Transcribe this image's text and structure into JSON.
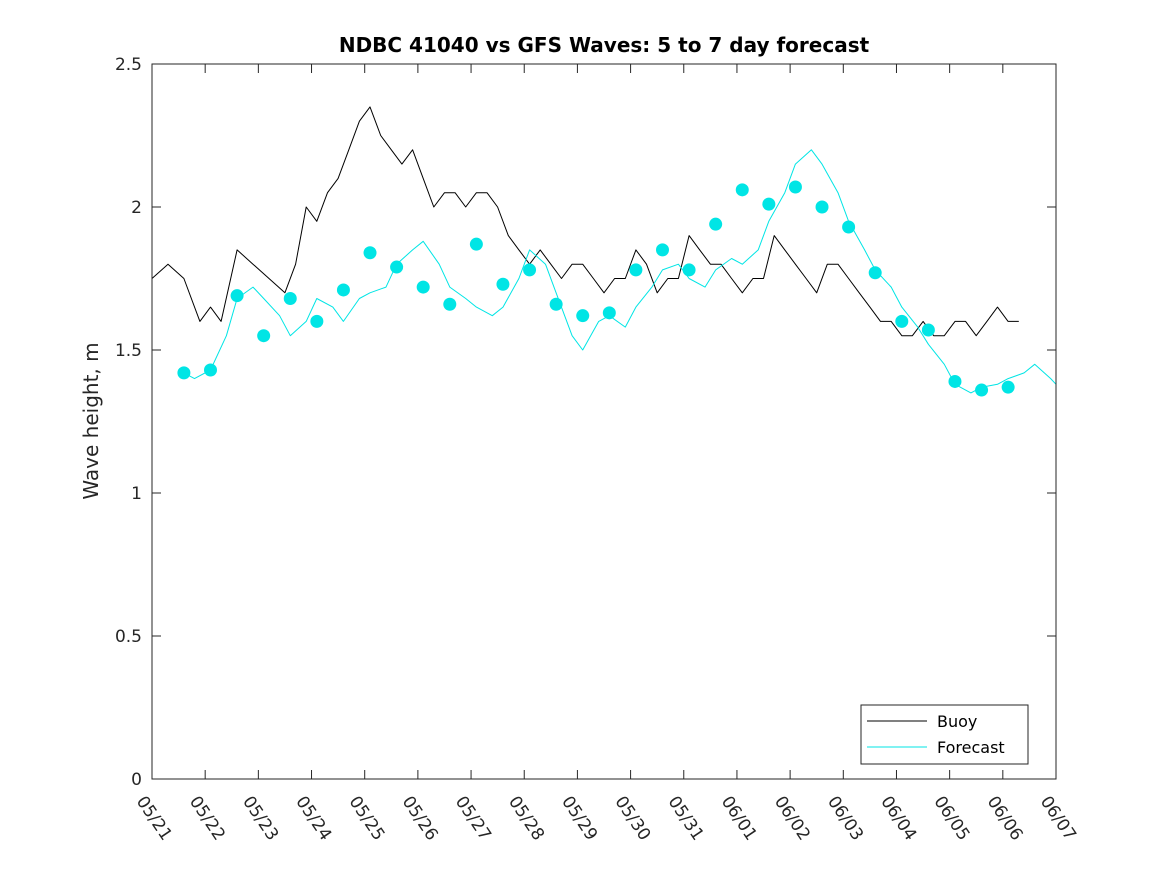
{
  "chart_data": {
    "type": "line",
    "title": "NDBC 41040 vs GFS Waves: 5 to 7 day forecast",
    "xlabel": "",
    "ylabel": "Wave height, m",
    "ylim": [
      0,
      2.5
    ],
    "xlim": [
      "05/21",
      "06/07"
    ],
    "x_tick_labels": [
      "05/21",
      "05/22",
      "05/23",
      "05/24",
      "05/25",
      "05/26",
      "05/27",
      "05/28",
      "05/29",
      "05/30",
      "05/31",
      "06/01",
      "06/02",
      "06/03",
      "06/04",
      "06/05",
      "06/06",
      "06/07"
    ],
    "y_tick_labels": [
      "0",
      "0.5",
      "1",
      "1.5",
      "2",
      "2.5"
    ],
    "y_ticks": [
      0,
      0.5,
      1,
      1.5,
      2,
      2.5
    ],
    "legend": {
      "position": "bottom-right",
      "entries": [
        {
          "label": "Buoy",
          "color": "#000000"
        },
        {
          "label": "Forecast",
          "color": "#00e5e5"
        }
      ]
    },
    "colors": {
      "buoy": "#000000",
      "forecast": "#00e5e5",
      "marker": "#00e5e5"
    },
    "series": [
      {
        "name": "Buoy",
        "color": "#000000",
        "note_x_units": "days since 05/21",
        "x": [
          0,
          0.3,
          0.6,
          0.9,
          1.1,
          1.3,
          1.6,
          1.9,
          2.2,
          2.5,
          2.7,
          2.9,
          3.1,
          3.3,
          3.5,
          3.7,
          3.9,
          4.1,
          4.3,
          4.5,
          4.7,
          4.9,
          5.1,
          5.3,
          5.5,
          5.7,
          5.9,
          6.1,
          6.3,
          6.5,
          6.7,
          6.9,
          7.1,
          7.3,
          7.5,
          7.7,
          7.9,
          8.1,
          8.3,
          8.5,
          8.7,
          8.9,
          9.1,
          9.3,
          9.5,
          9.7,
          9.9,
          10.1,
          10.3,
          10.5,
          10.7,
          10.9,
          11.1,
          11.3,
          11.5,
          11.7,
          11.9,
          12.1,
          12.3,
          12.5,
          12.7,
          12.9,
          13.1,
          13.3,
          13.5,
          13.7,
          13.9,
          14.1,
          14.3,
          14.5,
          14.7,
          14.9,
          15.1,
          15.3,
          15.5,
          15.7,
          15.9,
          16.1,
          16.3
        ],
        "values": [
          1.75,
          1.8,
          1.75,
          1.6,
          1.65,
          1.6,
          1.85,
          1.8,
          1.75,
          1.7,
          1.8,
          2.0,
          1.95,
          2.05,
          2.1,
          2.2,
          2.3,
          2.35,
          2.25,
          2.2,
          2.15,
          2.2,
          2.1,
          2.0,
          2.05,
          2.05,
          2.0,
          2.05,
          2.05,
          2.0,
          1.9,
          1.85,
          1.8,
          1.85,
          1.8,
          1.75,
          1.8,
          1.8,
          1.75,
          1.7,
          1.75,
          1.75,
          1.85,
          1.8,
          1.7,
          1.75,
          1.75,
          1.9,
          1.85,
          1.8,
          1.8,
          1.75,
          1.7,
          1.75,
          1.75,
          1.9,
          1.85,
          1.8,
          1.75,
          1.7,
          1.8,
          1.8,
          1.75,
          1.7,
          1.65,
          1.6,
          1.6,
          1.55,
          1.55,
          1.6,
          1.55,
          1.55,
          1.6,
          1.6,
          1.55,
          1.6,
          1.65,
          1.6,
          1.6
        ]
      },
      {
        "name": "Forecast",
        "color": "#00e5e5",
        "note_x_units": "days since 05/21",
        "x": [
          0.6,
          0.8,
          1.1,
          1.4,
          1.6,
          1.9,
          2.1,
          2.4,
          2.6,
          2.9,
          3.1,
          3.4,
          3.6,
          3.9,
          4.1,
          4.4,
          4.6,
          4.9,
          5.1,
          5.4,
          5.6,
          5.9,
          6.1,
          6.4,
          6.6,
          6.9,
          7.1,
          7.4,
          7.6,
          7.9,
          8.1,
          8.4,
          8.6,
          8.9,
          9.1,
          9.4,
          9.6,
          9.9,
          10.1,
          10.4,
          10.6,
          10.9,
          11.1,
          11.4,
          11.6,
          11.9,
          12.1,
          12.4,
          12.6,
          12.9,
          13.1,
          13.4,
          13.6,
          13.9,
          14.1,
          14.4,
          14.6,
          14.9,
          15.1,
          15.4,
          15.6,
          15.9,
          16.1,
          16.4,
          16.6,
          16.9,
          17.0
        ],
        "values": [
          1.42,
          1.4,
          1.43,
          1.55,
          1.68,
          1.72,
          1.68,
          1.62,
          1.55,
          1.6,
          1.68,
          1.65,
          1.6,
          1.68,
          1.7,
          1.72,
          1.8,
          1.85,
          1.88,
          1.8,
          1.72,
          1.68,
          1.65,
          1.62,
          1.65,
          1.75,
          1.85,
          1.8,
          1.7,
          1.55,
          1.5,
          1.6,
          1.62,
          1.58,
          1.65,
          1.72,
          1.78,
          1.8,
          1.75,
          1.72,
          1.78,
          1.82,
          1.8,
          1.85,
          1.95,
          2.05,
          2.15,
          2.2,
          2.15,
          2.05,
          1.95,
          1.85,
          1.78,
          1.72,
          1.65,
          1.58,
          1.52,
          1.45,
          1.38,
          1.35,
          1.37,
          1.38,
          1.4,
          1.42,
          1.45,
          1.4,
          1.38
        ]
      },
      {
        "name": "Forecast markers",
        "color": "#00e5e5",
        "note_x_units": "days since 05/21",
        "x": [
          0.6,
          1.1,
          1.6,
          2.1,
          2.6,
          3.1,
          3.6,
          4.1,
          4.6,
          5.1,
          5.6,
          6.1,
          6.6,
          7.1,
          7.6,
          8.1,
          8.6,
          9.1,
          9.6,
          10.1,
          10.6,
          11.1,
          11.6,
          12.1,
          12.6,
          13.1,
          13.6,
          14.1,
          14.6,
          15.1,
          15.6,
          16.1
        ],
        "values": [
          1.42,
          1.43,
          1.69,
          1.55,
          1.68,
          1.6,
          1.71,
          1.84,
          1.79,
          1.72,
          1.66,
          1.87,
          1.73,
          1.78,
          1.66,
          1.62,
          1.63,
          1.78,
          1.85,
          1.78,
          1.94,
          2.06,
          2.01,
          2.07,
          2.0,
          1.93,
          1.77,
          1.6,
          1.57,
          1.39,
          1.36,
          1.37
        ]
      }
    ]
  }
}
